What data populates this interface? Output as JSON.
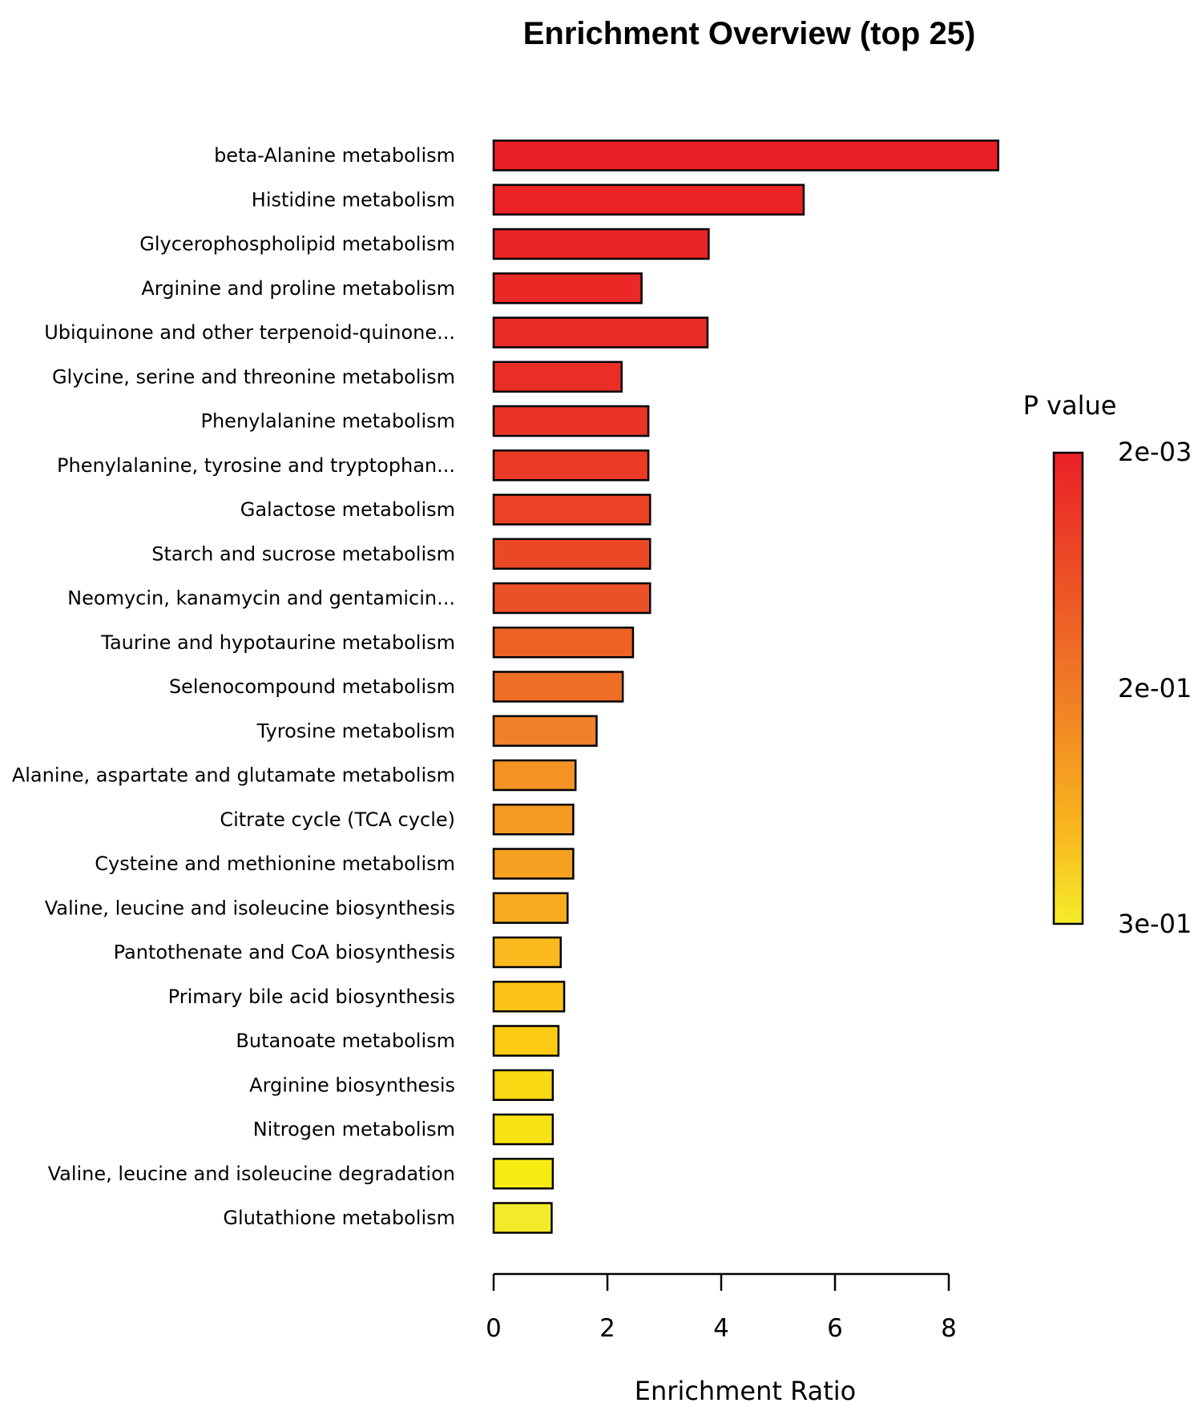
{
  "chart_data": {
    "type": "bar",
    "orientation": "horizontal",
    "title": "Enrichment Overview (top 25)",
    "xlabel": "Enrichment Ratio",
    "ylabel": "",
    "xlim": [
      0,
      8
    ],
    "xticks": [
      0,
      2,
      4,
      6,
      8
    ],
    "grid": false,
    "categories": [
      "beta-Alanine metabolism",
      "Histidine metabolism",
      "Glycerophospholipid metabolism",
      "Arginine and proline metabolism",
      "Ubiquinone and other terpenoid-quinone...",
      "Glycine, serine and threonine metabolism",
      "Phenylalanine metabolism",
      "Phenylalanine, tyrosine and tryptophan...",
      "Galactose metabolism",
      "Starch and sucrose metabolism",
      "Neomycin, kanamycin and gentamicin...",
      "Taurine and hypotaurine metabolism",
      "Selenocompound metabolism",
      "Tyrosine metabolism",
      "Alanine, aspartate and glutamate metabolism",
      "Citrate cycle (TCA cycle)",
      "Cysteine and methionine metabolism",
      "Valine, leucine and isoleucine biosynthesis",
      "Pantothenate and CoA biosynthesis",
      "Primary bile acid biosynthesis",
      "Butanoate metabolism",
      "Arginine biosynthesis",
      "Nitrogen metabolism",
      "Valine, leucine and isoleucine degradation",
      "Glutathione metabolism"
    ],
    "values": [
      8.87,
      5.45,
      3.78,
      2.6,
      3.76,
      2.25,
      2.72,
      2.72,
      2.75,
      2.75,
      2.75,
      2.45,
      2.27,
      1.81,
      1.44,
      1.4,
      1.4,
      1.3,
      1.18,
      1.24,
      1.14,
      1.04,
      1.04,
      1.04,
      1.02
    ],
    "bar_colors": [
      "#EA2027",
      "#EA2226",
      "#EA2526",
      "#EA2826",
      "#EA2A26",
      "#EA2E26",
      "#EA3426",
      "#EB3B26",
      "#EB4226",
      "#EB4926",
      "#EC5026",
      "#EE6226",
      "#EF6E25",
      "#F0812A",
      "#F49224",
      "#F59A22",
      "#F6A021",
      "#F8AB1F",
      "#FAB91C",
      "#FBC317",
      "#FBCB14",
      "#F9D814",
      "#F7E314",
      "#F6EB13",
      "#F3EA2A"
    ],
    "legend": {
      "title": "P value",
      "position": "right",
      "labels": [
        "2e-03",
        "2e-01",
        "3e-01"
      ],
      "colors": [
        "#EA2027",
        "#F07A26",
        "#F5ED2A"
      ]
    }
  }
}
